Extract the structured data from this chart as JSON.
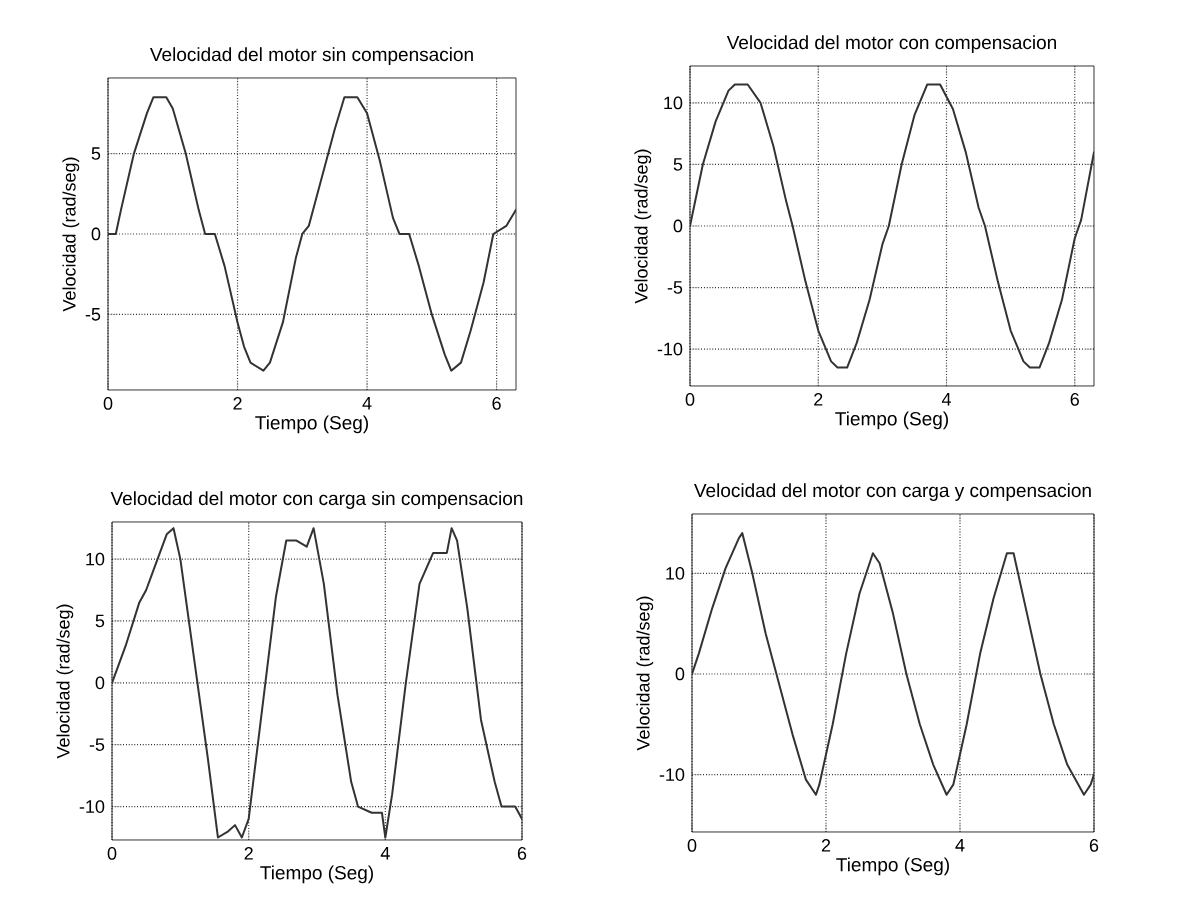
{
  "chart_data": [
    {
      "type": "line",
      "title": "Velocidad del motor sin compensacion",
      "xlabel": "Tiempo (Seg)",
      "ylabel": "Velocidad (rad/seg)",
      "xlim": [
        0,
        6.3
      ],
      "ylim": [
        -9.7,
        9.7
      ],
      "xticks": [
        0,
        2,
        4,
        6
      ],
      "yticks": [
        -5,
        0,
        5
      ],
      "grid": true,
      "line_style": "solid",
      "x": [
        0,
        0.12,
        0.2,
        0.4,
        0.6,
        0.7,
        0.9,
        1.0,
        1.2,
        1.4,
        1.5,
        1.65,
        1.8,
        2.0,
        2.1,
        2.2,
        2.4,
        2.5,
        2.7,
        2.9,
        3.0,
        3.1,
        3.3,
        3.5,
        3.65,
        3.85,
        4.0,
        4.2,
        4.4,
        4.5,
        4.65,
        4.8,
        5.0,
        5.2,
        5.3,
        5.45,
        5.6,
        5.8,
        5.95,
        6.15,
        6.3
      ],
      "series": [
        {
          "color": "#333333",
          "values": [
            0,
            0,
            1.5,
            5,
            7.5,
            8.5,
            8.5,
            7.8,
            5,
            1.5,
            0,
            0,
            -2,
            -5.5,
            -7,
            -8,
            -8.5,
            -8,
            -5.5,
            -1.5,
            0,
            0.5,
            3.5,
            6.5,
            8.5,
            8.5,
            7.5,
            4.5,
            1,
            0,
            0,
            -2,
            -5,
            -7.5,
            -8.5,
            -8,
            -6,
            -3,
            0,
            0.5,
            1.5
          ]
        }
      ]
    },
    {
      "type": "line",
      "title": "Velocidad del motor con compensacion",
      "xlabel": "Tiempo (Seg)",
      "ylabel": "Velocidad (rad/seg)",
      "xlim": [
        0,
        6.3
      ],
      "ylim": [
        -13,
        13
      ],
      "xticks": [
        0,
        2,
        4,
        6
      ],
      "yticks": [
        -10,
        -5,
        0,
        5,
        10
      ],
      "grid": true,
      "line_style": "solid",
      "x": [
        0,
        0.2,
        0.4,
        0.6,
        0.7,
        0.9,
        1.1,
        1.3,
        1.5,
        1.6,
        1.8,
        2.0,
        2.2,
        2.3,
        2.45,
        2.6,
        2.8,
        3.0,
        3.1,
        3.3,
        3.5,
        3.7,
        3.9,
        4.1,
        4.3,
        4.5,
        4.6,
        4.8,
        5.0,
        5.2,
        5.3,
        5.45,
        5.6,
        5.8,
        6.0,
        6.1,
        6.3
      ],
      "series": [
        {
          "color": "#333333",
          "values": [
            0,
            5,
            8.5,
            11,
            11.5,
            11.5,
            10,
            6.5,
            2,
            0,
            -4.5,
            -8.5,
            -11,
            -11.5,
            -11.5,
            -9.5,
            -6,
            -1.5,
            0,
            5,
            9,
            11.5,
            11.5,
            9.5,
            6,
            1.5,
            0,
            -4.5,
            -8.5,
            -11,
            -11.5,
            -11.5,
            -9.5,
            -6,
            -1,
            0.5,
            6
          ]
        }
      ]
    },
    {
      "type": "line",
      "title": "Velocidad del motor con carga sin compensacion",
      "xlabel": "Tiempo (Seg)",
      "ylabel": "Velocidad (rad/seg)",
      "xlim": [
        0,
        6
      ],
      "ylim": [
        -12.7,
        13
      ],
      "xticks": [
        0,
        2,
        4,
        6
      ],
      "yticks": [
        -10,
        -5,
        0,
        5,
        10
      ],
      "grid": true,
      "line_style": "solid",
      "x": [
        0,
        0.2,
        0.4,
        0.5,
        0.6,
        0.8,
        0.9,
        1.0,
        1.2,
        1.4,
        1.55,
        1.7,
        1.8,
        1.9,
        2.0,
        2.2,
        2.4,
        2.55,
        2.7,
        2.85,
        2.95,
        3.1,
        3.3,
        3.5,
        3.6,
        3.8,
        3.95,
        4.0,
        4.1,
        4.3,
        4.5,
        4.7,
        4.9,
        4.97,
        5.05,
        5.2,
        5.4,
        5.6,
        5.7,
        5.9,
        6.0
      ],
      "series": [
        {
          "color": "#333333",
          "values": [
            0,
            3,
            6.5,
            7.5,
            9,
            12,
            12.5,
            10,
            2,
            -6,
            -12.5,
            -12,
            -11.5,
            -12.5,
            -11,
            -2,
            7,
            11.5,
            11.5,
            11,
            12.5,
            8,
            -1,
            -8,
            -10,
            -10.5,
            -10.5,
            -12.5,
            -9,
            0,
            8,
            10.5,
            10.5,
            12.5,
            11.5,
            6,
            -3,
            -8,
            -10,
            -10,
            -11
          ]
        }
      ]
    },
    {
      "type": "line",
      "title": "Velocidad del motor con carga y compensacion",
      "xlabel": "Tiempo (Seg)",
      "ylabel": "Velocidad (rad/seg)",
      "xlim": [
        0,
        6
      ],
      "ylim": [
        -15.7,
        15.9
      ],
      "xticks": [
        0,
        2,
        4,
        6
      ],
      "yticks": [
        -10,
        0,
        10
      ],
      "grid": true,
      "line_style": "solid",
      "x": [
        0,
        0.1,
        0.3,
        0.5,
        0.7,
        0.75,
        0.9,
        1.1,
        1.3,
        1.5,
        1.7,
        1.85,
        1.9,
        2.1,
        2.3,
        2.5,
        2.7,
        2.8,
        3.0,
        3.2,
        3.4,
        3.6,
        3.8,
        3.9,
        4.1,
        4.3,
        4.5,
        4.7,
        4.8,
        5.0,
        5.2,
        5.4,
        5.6,
        5.85,
        5.95,
        6.0
      ],
      "series": [
        {
          "color": "#333333",
          "values": [
            0,
            2,
            6.5,
            10.5,
            13.5,
            14,
            10,
            4,
            -1,
            -6,
            -10.5,
            -12,
            -11,
            -5,
            2,
            8,
            12,
            11,
            6,
            0,
            -5,
            -9,
            -12,
            -11,
            -5,
            2,
            7.5,
            12,
            12,
            6,
            0,
            -5,
            -9,
            -12,
            -11,
            -10
          ]
        }
      ]
    }
  ]
}
